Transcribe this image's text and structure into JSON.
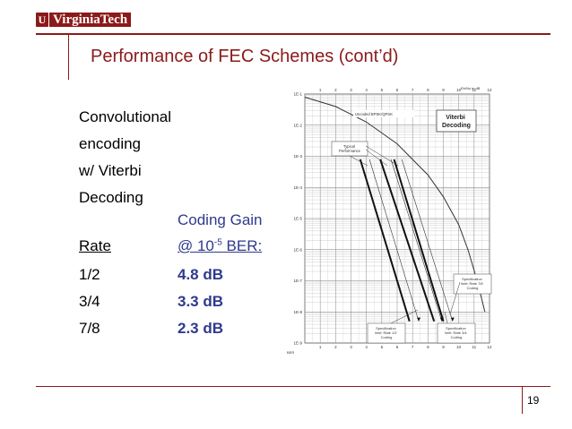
{
  "header": {
    "logo_mark": "U",
    "logo_text": "VirginiaTech"
  },
  "title": "Performance of FEC Schemes (cont’d)",
  "left_lines": [
    "Convolutional",
    "encoding",
    "w/ Viterbi",
    "Decoding"
  ],
  "table": {
    "coding_gain_label": "Coding Gain",
    "rate_header": "Rate",
    "ber_prefix": "@ 10",
    "ber_exponent": "-5",
    "ber_suffix": " BER:",
    "rows": [
      {
        "rate": "1/2",
        "gain": "4.8 dB"
      },
      {
        "rate": "3/4",
        "gain": "3.3 dB"
      },
      {
        "rate": "7/8",
        "gain": "2.3 dB"
      }
    ]
  },
  "chart_data": {
    "type": "line",
    "title": "Viterbi Decoding",
    "top_axis_label": "Eb/No in dB",
    "xlabel": "",
    "ylabel": "BER",
    "x_ticks": [
      "1",
      "2",
      "3",
      "4",
      "5",
      "6",
      "7",
      "8",
      "9",
      "10",
      "11",
      "12"
    ],
    "y_ticks": [
      "1E-1",
      "1E-2",
      "1E-3",
      "1E-4",
      "1E-5",
      "1E-6",
      "1E-7",
      "1E-8",
      "1E-9"
    ],
    "xlim": [
      0,
      12
    ],
    "ylog_range": [
      -9,
      -1
    ],
    "annotations": [
      {
        "text": "Uncoded BPSK/QPSK"
      },
      {
        "text": "Typical Performance"
      },
      {
        "text": "Specification limit: Rate 7/8 Coding"
      },
      {
        "text": "Specification limit: Rate 1/2 Coding"
      },
      {
        "text": "Specification limit: Rate 3/4 Coding"
      }
    ],
    "series": [
      {
        "style": "uncoded",
        "points": [
          [
            0,
            -1.1
          ],
          [
            2,
            -1.4
          ],
          [
            4,
            -1.9
          ],
          [
            6,
            -2.6
          ],
          [
            8,
            -3.6
          ],
          [
            9,
            -4.3
          ],
          [
            10,
            -5.2
          ],
          [
            10.6,
            -6.0
          ],
          [
            11.2,
            -7.0
          ],
          [
            11.7,
            -8.0
          ]
        ]
      },
      {
        "style": "typical",
        "points": [
          [
            3.6,
            -3.1
          ],
          [
            6.8,
            -8.3
          ]
        ]
      },
      {
        "style": "typical",
        "points": [
          [
            4.9,
            -3.1
          ],
          [
            8.4,
            -8.3
          ]
        ]
      },
      {
        "style": "typical",
        "points": [
          [
            5.8,
            -3.1
          ],
          [
            9.0,
            -8.3
          ]
        ]
      },
      {
        "style": "spec",
        "points": [
          [
            4.2,
            -3.1
          ],
          [
            7.4,
            -8.3
          ]
        ]
      },
      {
        "style": "spec",
        "points": [
          [
            5.6,
            -3.1
          ],
          [
            8.9,
            -8.3
          ]
        ]
      },
      {
        "style": "spec",
        "points": [
          [
            6.3,
            -3.1
          ],
          [
            9.6,
            -8.3
          ]
        ]
      }
    ]
  },
  "page_number": "19"
}
